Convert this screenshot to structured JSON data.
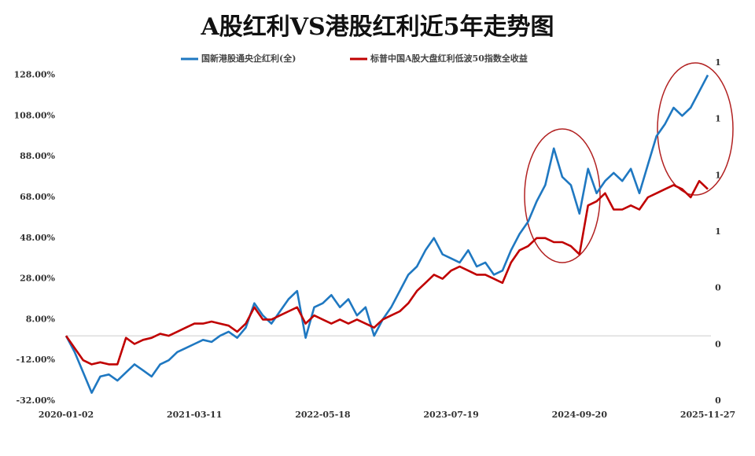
{
  "chart_data": {
    "type": "line",
    "title": "A股红利VS港股红利近5年走势图",
    "categories": [
      "2020-01-02",
      null,
      null,
      null,
      null,
      null,
      null,
      null,
      null,
      null,
      null,
      null,
      null,
      null,
      null,
      "2021-03-11",
      null,
      null,
      null,
      null,
      null,
      null,
      null,
      null,
      null,
      null,
      null,
      null,
      null,
      null,
      "2022-05-18",
      null,
      null,
      null,
      null,
      null,
      null,
      null,
      null,
      null,
      null,
      null,
      null,
      null,
      null,
      "2023-07-19",
      null,
      null,
      null,
      null,
      null,
      null,
      null,
      null,
      null,
      null,
      null,
      null,
      null,
      null,
      "2024-09-20",
      null,
      null,
      null,
      null,
      null,
      null,
      null,
      null,
      null,
      null,
      null,
      null,
      null,
      null,
      "2025-11-27"
    ],
    "series": [
      {
        "name": "国新港股通央企红利(全)",
        "color": "#1f78c1",
        "values": [
          0,
          -8,
          -18,
          -28,
          -20,
          -19,
          -22,
          -18,
          -14,
          -17,
          -20,
          -14,
          -12,
          -8,
          -6,
          -4,
          -2,
          -3,
          0,
          2,
          -1,
          4,
          16,
          10,
          6,
          12,
          18,
          22,
          -1,
          14,
          16,
          20,
          14,
          18,
          10,
          14,
          0,
          8,
          14,
          22,
          30,
          34,
          42,
          48,
          40,
          38,
          36,
          42,
          34,
          36,
          30,
          32,
          42,
          50,
          56,
          66,
          74,
          92,
          78,
          74,
          60,
          82,
          70,
          76,
          80,
          76,
          82,
          70,
          84,
          98,
          104,
          112,
          108,
          112,
          120,
          128
        ]
      },
      {
        "name": "标普中国A股大盘红利低波50指数全收益",
        "color": "#c00000",
        "values": [
          0,
          -6,
          -12,
          -14,
          -13,
          -14,
          -14,
          -1,
          -4,
          -2,
          -1,
          1,
          0,
          2,
          4,
          6,
          6,
          7,
          6,
          5,
          2,
          6,
          14,
          8,
          8,
          10,
          12,
          14,
          6,
          10,
          8,
          6,
          8,
          6,
          8,
          6,
          4,
          8,
          10,
          12,
          16,
          22,
          26,
          30,
          28,
          32,
          34,
          32,
          30,
          30,
          28,
          26,
          36,
          42,
          44,
          48,
          48,
          46,
          46,
          44,
          40,
          64,
          66,
          70,
          62,
          62,
          64,
          62,
          68,
          70,
          72,
          74,
          72,
          68,
          76,
          72
        ]
      }
    ],
    "ylim": [
      -32,
      134
    ],
    "yticks": [
      {
        "value": -32,
        "label": "-32.00%"
      },
      {
        "value": -12,
        "label": "-12.00%"
      },
      {
        "value": 8,
        "label": "8.00%"
      },
      {
        "value": 28,
        "label": "28.00%"
      },
      {
        "value": 48,
        "label": "48.00%"
      },
      {
        "value": 68,
        "label": "68.00%"
      },
      {
        "value": 88,
        "label": "88.00%"
      },
      {
        "value": 108,
        "label": "108.00%"
      },
      {
        "value": 128,
        "label": "128.00%"
      }
    ],
    "y2lim": [
      0,
      1.2
    ],
    "y2ticks": [
      0,
      {
        "value": 0.2,
        "label": "0"
      },
      {
        "value": 0.4,
        "label": "0"
      },
      {
        "value": 0.6,
        "label": "1"
      },
      {
        "value": 0.8,
        "label": "1"
      },
      1,
      {
        "value": 1.2,
        "label": "1"
      }
    ],
    "legend": "top"
  }
}
